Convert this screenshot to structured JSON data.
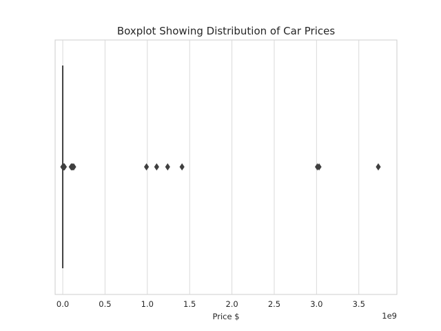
{
  "chart_data": {
    "type": "boxplot",
    "orientation": "horizontal",
    "title": "Boxplot Showing Distribution of Car Prices",
    "xlabel": "Price $",
    "ylabel": "",
    "offset_text": "1e9",
    "xlim": [
      -0.09,
      3.95
    ],
    "xticks": [
      0.0,
      0.5,
      1.0,
      1.5,
      2.0,
      2.5,
      3.0,
      3.5
    ],
    "xtick_labels": [
      "0.0",
      "0.5",
      "1.0",
      "1.5",
      "2.0",
      "2.5",
      "3.0",
      "3.5"
    ],
    "grid": "vertical",
    "box": {
      "q1": 0.0,
      "median": 0.0,
      "q3": 0.0,
      "whisker_low": 0.0,
      "whisker_high": 0.0
    },
    "outliers": [
      0.0,
      0.005,
      0.01,
      0.015,
      0.02,
      0.1,
      0.11,
      0.12,
      0.13,
      0.99,
      1.11,
      1.24,
      1.41,
      3.01,
      3.03,
      3.73
    ],
    "colors": {
      "box": "#3f3f3f",
      "grid": "#d9d9d9",
      "frame": "#cccccc"
    }
  }
}
